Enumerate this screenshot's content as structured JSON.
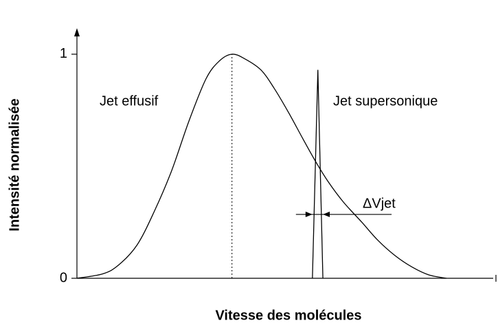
{
  "chart_data": {
    "type": "line",
    "xlabel": "Vitesse des molécules",
    "ylabel": "Intensité normalisée",
    "xlim": [
      0,
      10
    ],
    "ylim": [
      0,
      1.11
    ],
    "yticks": [
      0,
      1
    ],
    "grid": false,
    "series": [
      {
        "name": "Jet effusif",
        "color": "#000000",
        "x": [
          0,
          0.62,
          1.0,
          1.44,
          1.85,
          2.26,
          2.67,
          3.08,
          3.4,
          3.7,
          4.0,
          4.39,
          4.7,
          5.05,
          5.4,
          5.7,
          6.0,
          6.36,
          6.8,
          7.18,
          7.6,
          8.0,
          8.4,
          8.82
        ],
        "values": [
          0,
          0.02,
          0.06,
          0.15,
          0.3,
          0.48,
          0.7,
          0.89,
          0.97,
          1.0,
          0.98,
          0.93,
          0.85,
          0.74,
          0.62,
          0.52,
          0.43,
          0.34,
          0.25,
          0.17,
          0.1,
          0.05,
          0.015,
          0
        ]
      },
      {
        "name": "Jet supersonique",
        "color": "#000000",
        "x": [
          5.62,
          5.75,
          5.87
        ],
        "values": [
          0,
          0.93,
          0
        ]
      }
    ],
    "peak_line": {
      "x": 3.7,
      "y": 1.0
    },
    "delta_annotation": {
      "label": "ΔVjet",
      "y": 0.285,
      "x": [
        5.62,
        5.87
      ]
    }
  }
}
